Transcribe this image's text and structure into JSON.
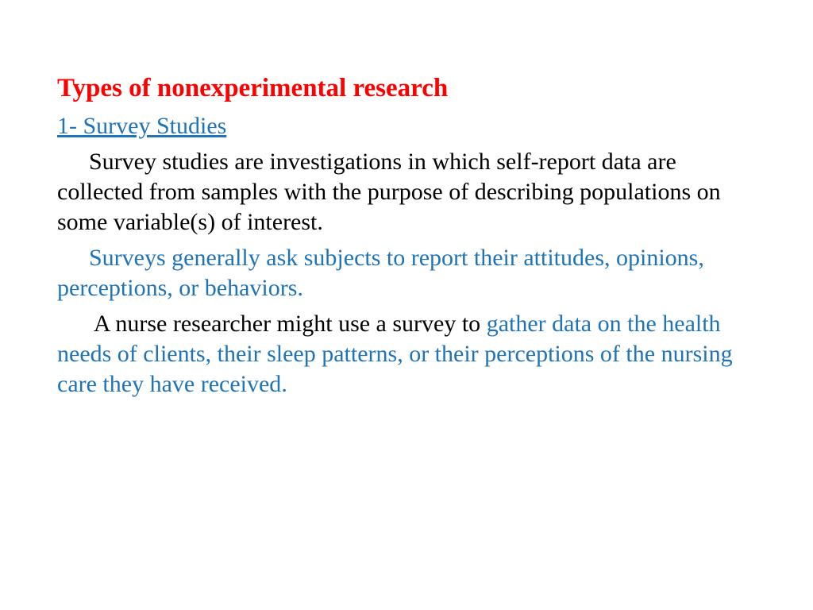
{
  "colors": {
    "title": "#ff0000",
    "subtitle": "#1f73b7",
    "body": "#000000",
    "accent": "#1f73b7",
    "background": "#ffffff"
  },
  "fonts": {
    "title_size": "33px",
    "subtitle_size": "30px",
    "body_size": "30px",
    "line_height": "1.28"
  },
  "title": "Types of nonexperimental research",
  "subtitle": "1- Survey Studies",
  "para1": "Survey studies are investigations in which self-report data are collected from samples with the purpose of describing populations on some variable(s) of interest.",
  "para2": "Surveys generally ask subjects to report their attitudes, opinions, perceptions, or behaviors.",
  "para3_a": " A nurse researcher might use a survey to ",
  "para3_b": "gather data on the health needs of clients, their sleep patterns, or their perceptions of the nursing care they have received",
  "para3_c": "."
}
